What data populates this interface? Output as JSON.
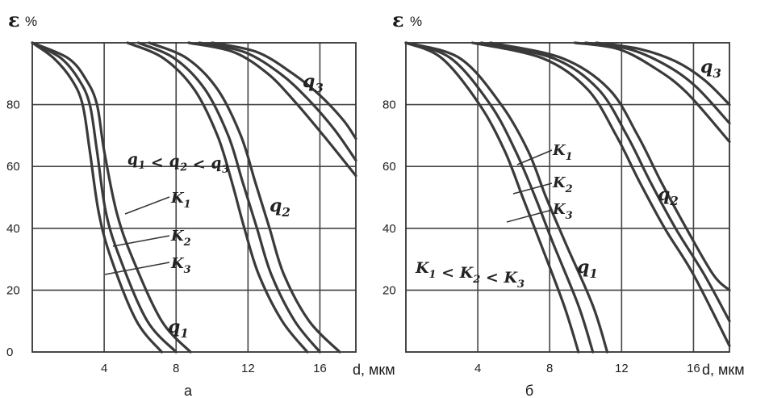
{
  "chart_data": [
    {
      "type": "line",
      "panel_label": "а",
      "ylabel_symbol": "ε",
      "ylabel_unit": "%",
      "xlabel": "d, мкм",
      "xlim": [
        0,
        18
      ],
      "ylim": [
        0,
        100
      ],
      "x_ticks": [
        4,
        8,
        12,
        16
      ],
      "y_ticks": [
        0,
        20,
        40,
        60,
        80
      ],
      "grid": true,
      "series": [
        {
          "name": "q1, k1",
          "x": [
            0,
            2,
            3,
            3.6,
            4,
            4.7,
            5.6,
            7.2,
            8.8
          ],
          "y": [
            100,
            95,
            88,
            80,
            65,
            45,
            30,
            10,
            0
          ]
        },
        {
          "name": "q1, k2",
          "x": [
            0,
            1.6,
            2.6,
            3.2,
            3.6,
            4.1,
            4.9,
            6.4,
            8.0
          ],
          "y": [
            100,
            95,
            88,
            80,
            65,
            45,
            30,
            10,
            0
          ]
        },
        {
          "name": "q1, k3",
          "x": [
            0,
            1.2,
            2.2,
            2.8,
            3.2,
            3.7,
            4.4,
            5.8,
            7.2
          ],
          "y": [
            100,
            95,
            88,
            80,
            65,
            45,
            30,
            10,
            0
          ]
        },
        {
          "name": "q2, k1",
          "x": [
            6.5,
            8.6,
            10.3,
            11.6,
            12.4,
            13.2,
            14.0,
            15.4,
            17.1
          ],
          "y": [
            100,
            95,
            85,
            70,
            55,
            40,
            25,
            10,
            0
          ]
        },
        {
          "name": "q2, k2",
          "x": [
            5.9,
            7.9,
            9.6,
            10.9,
            11.7,
            12.5,
            13.3,
            14.6,
            16.0
          ],
          "y": [
            100,
            95,
            85,
            70,
            55,
            40,
            25,
            10,
            0
          ]
        },
        {
          "name": "q2, k3",
          "x": [
            5.3,
            7.3,
            9.0,
            10.3,
            11.1,
            11.8,
            12.6,
            13.9,
            15.3
          ],
          "y": [
            100,
            95,
            85,
            70,
            55,
            40,
            25,
            10,
            0
          ]
        },
        {
          "name": "q3, k1",
          "x": [
            10.0,
            12.5,
            14.5,
            16.0,
            17.3,
            18.0
          ],
          "y": [
            100,
            97,
            90,
            83,
            75,
            69
          ]
        },
        {
          "name": "q3, k2",
          "x": [
            9.3,
            11.8,
            13.8,
            15.3,
            16.8,
            18.0
          ],
          "y": [
            100,
            97,
            90,
            82,
            72,
            62
          ]
        },
        {
          "name": "q3, k3",
          "x": [
            8.7,
            11.2,
            13.1,
            14.6,
            16.2,
            18.0
          ],
          "y": [
            100,
            97,
            90,
            81,
            70,
            57
          ]
        }
      ],
      "annotations": {
        "inequality": "q1 < q2 < q3",
        "q1": "q1",
        "q2": "q2",
        "q3": "q3",
        "k1": "K1",
        "k2": "K2",
        "k3": "K3"
      }
    },
    {
      "type": "line",
      "panel_label": "б",
      "ylabel_symbol": "ε",
      "ylabel_unit": "%",
      "xlabel": "d, мкм",
      "xlim": [
        0,
        18
      ],
      "ylim": [
        0,
        100
      ],
      "x_ticks": [
        4,
        8,
        12,
        16
      ],
      "y_ticks": [
        20,
        40,
        60,
        80
      ],
      "grid": true,
      "series": [
        {
          "name": "q1, k1",
          "x": [
            0,
            3.0,
            5.3,
            6.8,
            7.8,
            8.9,
            10.4,
            11.2
          ],
          "y": [
            100,
            95,
            80,
            65,
            50,
            35,
            15,
            0
          ]
        },
        {
          "name": "q1, k2",
          "x": [
            0,
            2.5,
            4.7,
            6.1,
            7.2,
            8.2,
            9.6,
            10.4
          ],
          "y": [
            100,
            95,
            80,
            65,
            50,
            35,
            15,
            0
          ]
        },
        {
          "name": "q1, k3",
          "x": [
            0,
            2.0,
            4.1,
            5.5,
            6.5,
            7.5,
            8.8,
            9.6
          ],
          "y": [
            100,
            95,
            80,
            65,
            50,
            35,
            15,
            0
          ]
        },
        {
          "name": "q2, k1",
          "x": [
            4.7,
            8.7,
            11.3,
            12.9,
            14.2,
            15.6,
            17.1,
            18.0
          ],
          "y": [
            100,
            95,
            85,
            70,
            55,
            40,
            25,
            20
          ]
        },
        {
          "name": "q2, k2",
          "x": [
            4.2,
            8.2,
            10.7,
            12.3,
            13.6,
            15.0,
            16.6,
            18.0
          ],
          "y": [
            100,
            95,
            85,
            70,
            55,
            40,
            25,
            10
          ]
        },
        {
          "name": "q2, k3",
          "x": [
            3.7,
            7.6,
            10.1,
            11.7,
            13.0,
            14.4,
            16.0,
            18.0
          ],
          "y": [
            100,
            95,
            85,
            70,
            55,
            40,
            25,
            2
          ]
        },
        {
          "name": "q3, k1",
          "x": [
            10.6,
            13.0,
            15.0,
            16.6,
            18.0
          ],
          "y": [
            100,
            98,
            94,
            88,
            80
          ]
        },
        {
          "name": "q3, k2",
          "x": [
            10.0,
            12.4,
            14.4,
            16.1,
            18.0
          ],
          "y": [
            100,
            98,
            93,
            86,
            74
          ]
        },
        {
          "name": "q3, k3",
          "x": [
            9.4,
            11.8,
            13.8,
            15.6,
            18.0
          ],
          "y": [
            100,
            98,
            92,
            84,
            68
          ]
        }
      ],
      "annotations": {
        "inequality": "K1 < K2 < K3",
        "q1": "q1",
        "q2": "q2",
        "q3": "q3",
        "k1": "K1",
        "k2": "K2",
        "k3": "K3"
      }
    }
  ]
}
